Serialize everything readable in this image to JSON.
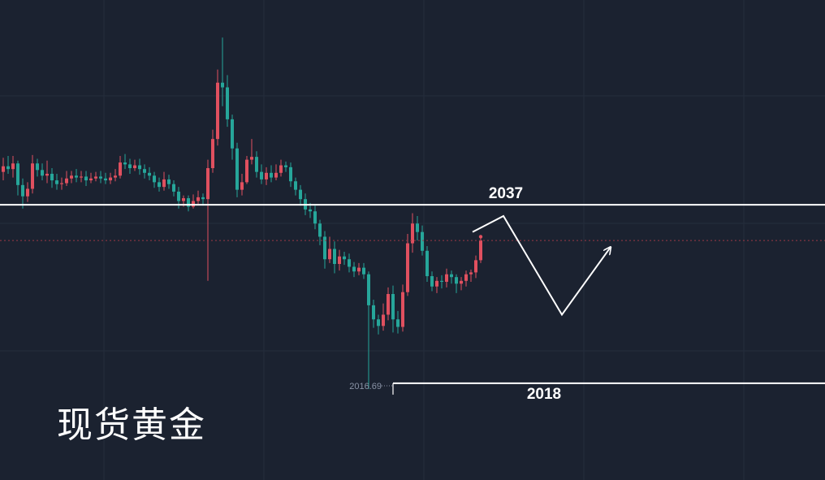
{
  "title": "现货黄金",
  "colors": {
    "background": "#1b2230",
    "grid": "#252d3c",
    "up": "#e0505f",
    "down": "#26a69a",
    "level_line": "#ffffff",
    "current_price_line": "#9b3a45",
    "projection": "#ffffff"
  },
  "chart_data": {
    "type": "candlestick",
    "y_range": [
      2007.7,
      2058.8
    ],
    "levels": [
      {
        "value": 2037,
        "label": "2037"
      },
      {
        "value": 2018,
        "label": "2018"
      }
    ],
    "low_marker": {
      "value": 2016.69,
      "label": "2016.69"
    },
    "current_price": 2033.2,
    "projection_path": [
      2034.1,
      2035.8,
      2025.3,
      2032.5
    ],
    "candles": [
      [
        2040.5,
        2041.1,
        2042.0,
        2039.6
      ],
      [
        2041.1,
        2040.8,
        2042.2,
        2040.3
      ],
      [
        2040.8,
        2041.4,
        2042.2,
        2039.9
      ],
      [
        2041.4,
        2039.1,
        2041.7,
        2038.0
      ],
      [
        2039.1,
        2037.9,
        2039.8,
        2036.6
      ],
      [
        2037.9,
        2038.7,
        2039.4,
        2037.3
      ],
      [
        2038.7,
        2041.4,
        2042.3,
        2038.2
      ],
      [
        2041.4,
        2040.7,
        2041.9,
        2040.0
      ],
      [
        2040.7,
        2040.1,
        2041.4,
        2039.6
      ],
      [
        2040.1,
        2040.3,
        2041.7,
        2039.3
      ],
      [
        2040.3,
        2039.6,
        2040.9,
        2038.8
      ],
      [
        2039.6,
        2039.2,
        2040.3,
        2038.6
      ],
      [
        2039.2,
        2039.3,
        2039.9,
        2038.6
      ],
      [
        2039.3,
        2039.8,
        2040.6,
        2039.0
      ],
      [
        2039.8,
        2040.1,
        2040.6,
        2039.3
      ],
      [
        2040.1,
        2039.9,
        2040.8,
        2039.4
      ],
      [
        2039.9,
        2040.0,
        2040.6,
        2039.4
      ],
      [
        2040.0,
        2039.6,
        2040.6,
        2039.0
      ],
      [
        2039.6,
        2039.8,
        2040.4,
        2039.3
      ],
      [
        2039.8,
        2040.0,
        2040.5,
        2039.5
      ],
      [
        2040.0,
        2039.8,
        2040.6,
        2039.3
      ],
      [
        2039.8,
        2039.6,
        2040.4,
        2039.2
      ],
      [
        2039.6,
        2039.9,
        2040.4,
        2039.2
      ],
      [
        2039.9,
        2040.1,
        2040.8,
        2039.5
      ],
      [
        2040.1,
        2041.5,
        2042.2,
        2039.8
      ],
      [
        2041.5,
        2041.3,
        2042.4,
        2040.8
      ],
      [
        2041.3,
        2040.9,
        2041.9,
        2040.3
      ],
      [
        2040.9,
        2041.2,
        2041.8,
        2040.6
      ],
      [
        2041.2,
        2040.8,
        2041.9,
        2040.2
      ],
      [
        2040.8,
        2040.4,
        2041.3,
        2039.8
      ],
      [
        2040.4,
        2040.1,
        2041.0,
        2039.6
      ],
      [
        2040.1,
        2039.4,
        2040.5,
        2038.8
      ],
      [
        2039.4,
        2038.9,
        2039.9,
        2038.4
      ],
      [
        2038.9,
        2039.7,
        2040.5,
        2038.5
      ],
      [
        2039.7,
        2039.2,
        2040.2,
        2038.7
      ],
      [
        2039.2,
        2038.4,
        2039.6,
        2037.9
      ],
      [
        2038.4,
        2037.4,
        2038.9,
        2036.6
      ],
      [
        2037.4,
        2037.7,
        2038.0,
        2036.8
      ],
      [
        2037.7,
        2036.8,
        2038.0,
        2036.3
      ],
      [
        2036.8,
        2037.4,
        2038.1,
        2036.6
      ],
      [
        2037.4,
        2037.8,
        2038.5,
        2037.1
      ],
      [
        2037.8,
        2037.6,
        2038.2,
        2036.9
      ],
      [
        2037.6,
        2040.9,
        2041.8,
        2028.9
      ],
      [
        2040.9,
        2044.0,
        2045.0,
        2040.4
      ],
      [
        2044.0,
        2050.0,
        2051.4,
        2043.3
      ],
      [
        2050.0,
        2049.5,
        2054.8,
        2047.5
      ],
      [
        2049.5,
        2046.1,
        2050.8,
        2045.3
      ],
      [
        2046.1,
        2043.0,
        2046.6,
        2041.8
      ],
      [
        2043.0,
        2038.6,
        2043.6,
        2037.8
      ],
      [
        2038.6,
        2039.4,
        2040.3,
        2038.0
      ],
      [
        2039.4,
        2041.8,
        2042.2,
        2039.2
      ],
      [
        2041.8,
        2042.1,
        2044.0,
        2041.3
      ],
      [
        2042.1,
        2040.5,
        2042.7,
        2039.9
      ],
      [
        2040.5,
        2039.7,
        2041.3,
        2039.2
      ],
      [
        2039.7,
        2040.4,
        2041.0,
        2039.1
      ],
      [
        2040.4,
        2039.9,
        2041.2,
        2039.4
      ],
      [
        2039.9,
        2040.4,
        2041.3,
        2039.6
      ],
      [
        2040.4,
        2041.2,
        2041.8,
        2040.0
      ],
      [
        2041.2,
        2041.0,
        2041.6,
        2040.5
      ],
      [
        2041.0,
        2039.5,
        2041.5,
        2038.9
      ],
      [
        2039.5,
        2038.6,
        2039.9,
        2038.0
      ],
      [
        2038.6,
        2037.6,
        2039.1,
        2036.9
      ],
      [
        2037.6,
        2036.5,
        2038.2,
        2035.9
      ],
      [
        2036.5,
        2036.3,
        2037.2,
        2035.6
      ],
      [
        2036.3,
        2035.0,
        2036.9,
        2034.4
      ],
      [
        2035.0,
        2033.6,
        2035.4,
        2032.7
      ],
      [
        2033.6,
        2031.2,
        2034.2,
        2030.2
      ],
      [
        2031.2,
        2032.3,
        2033.6,
        2030.8
      ],
      [
        2032.3,
        2030.7,
        2033.1,
        2029.7
      ],
      [
        2030.7,
        2031.5,
        2032.2,
        2030.0
      ],
      [
        2031.5,
        2031.2,
        2032.0,
        2030.6
      ],
      [
        2031.2,
        2030.4,
        2031.8,
        2029.8
      ],
      [
        2030.4,
        2029.9,
        2030.9,
        2029.3
      ],
      [
        2029.9,
        2030.3,
        2030.8,
        2029.5
      ],
      [
        2030.3,
        2029.6,
        2030.8,
        2029.1
      ],
      [
        2029.6,
        2026.3,
        2029.9,
        2017.4
      ],
      [
        2026.3,
        2024.8,
        2026.9,
        2023.9
      ],
      [
        2024.8,
        2024.1,
        2025.3,
        2023.2
      ],
      [
        2024.1,
        2025.3,
        2026.5,
        2023.6
      ],
      [
        2025.3,
        2027.5,
        2028.2,
        2024.7
      ],
      [
        2027.5,
        2024.8,
        2028.4,
        2023.4
      ],
      [
        2024.8,
        2024.0,
        2025.7,
        2023.3
      ],
      [
        2024.0,
        2027.7,
        2028.5,
        2023.5
      ],
      [
        2027.7,
        2032.9,
        2033.9,
        2027.3
      ],
      [
        2032.9,
        2035.0,
        2036.1,
        2031.9
      ],
      [
        2035.0,
        2034.1,
        2035.8,
        2033.2
      ],
      [
        2034.1,
        2032.1,
        2034.8,
        2031.6
      ],
      [
        2032.1,
        2029.4,
        2032.6,
        2028.8
      ],
      [
        2029.4,
        2028.3,
        2029.9,
        2027.8
      ],
      [
        2028.3,
        2028.9,
        2029.3,
        2027.6
      ],
      [
        2028.9,
        2028.8,
        2029.5,
        2028.1
      ],
      [
        2028.8,
        2029.6,
        2030.2,
        2028.2
      ],
      [
        2029.6,
        2029.3,
        2030.0,
        2028.6
      ],
      [
        2029.3,
        2028.6,
        2029.6,
        2027.6
      ],
      [
        2028.6,
        2028.9,
        2029.3,
        2027.9
      ],
      [
        2028.9,
        2029.6,
        2030.0,
        2028.3
      ],
      [
        2029.6,
        2029.8,
        2030.1,
        2028.8
      ],
      [
        2029.8,
        2031.1,
        2031.6,
        2029.2
      ],
      [
        2031.1,
        2033.2,
        2033.6,
        2030.8
      ]
    ]
  }
}
